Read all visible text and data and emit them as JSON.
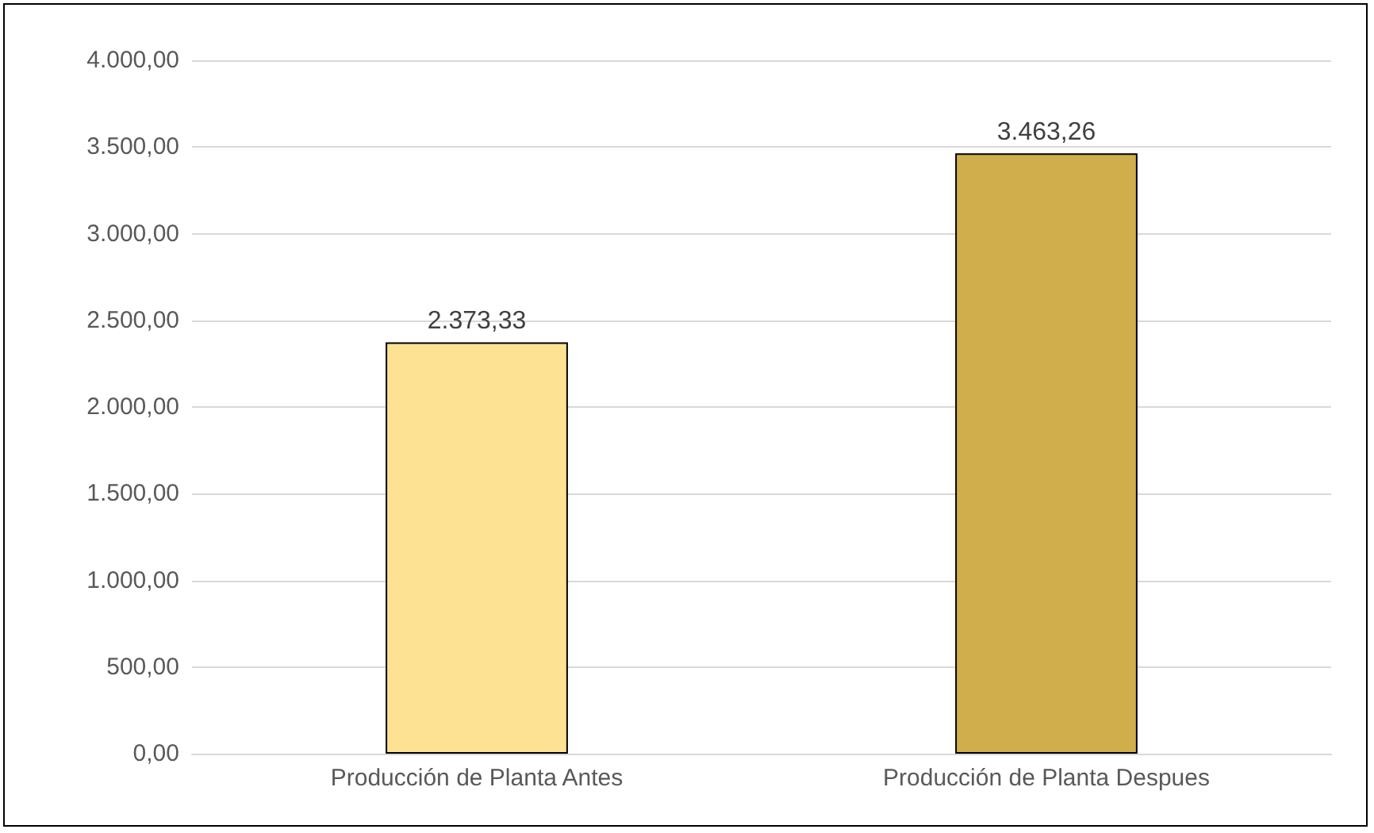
{
  "chart_data": {
    "type": "bar",
    "categories": [
      "Producción de Planta Antes",
      "Producción de Planta Despues"
    ],
    "values": [
      2373.33,
      3463.26
    ],
    "colors": [
      "#fde293",
      "#d1ae4c"
    ],
    "value_labels": [
      "2.373,33",
      "3.463,26"
    ],
    "ylim": [
      0,
      4000
    ],
    "yticks": [
      {
        "value": 0,
        "label": "0,00"
      },
      {
        "value": 500,
        "label": "500,00"
      },
      {
        "value": 1000,
        "label": "1.000,00"
      },
      {
        "value": 1500,
        "label": "1.500,00"
      },
      {
        "value": 2000,
        "label": "2.000,00"
      },
      {
        "value": 2500,
        "label": "2.500,00"
      },
      {
        "value": 3000,
        "label": "3.000,00"
      },
      {
        "value": 3500,
        "label": "3.500,00"
      },
      {
        "value": 4000,
        "label": "4.000,00"
      }
    ],
    "grid": "y"
  }
}
